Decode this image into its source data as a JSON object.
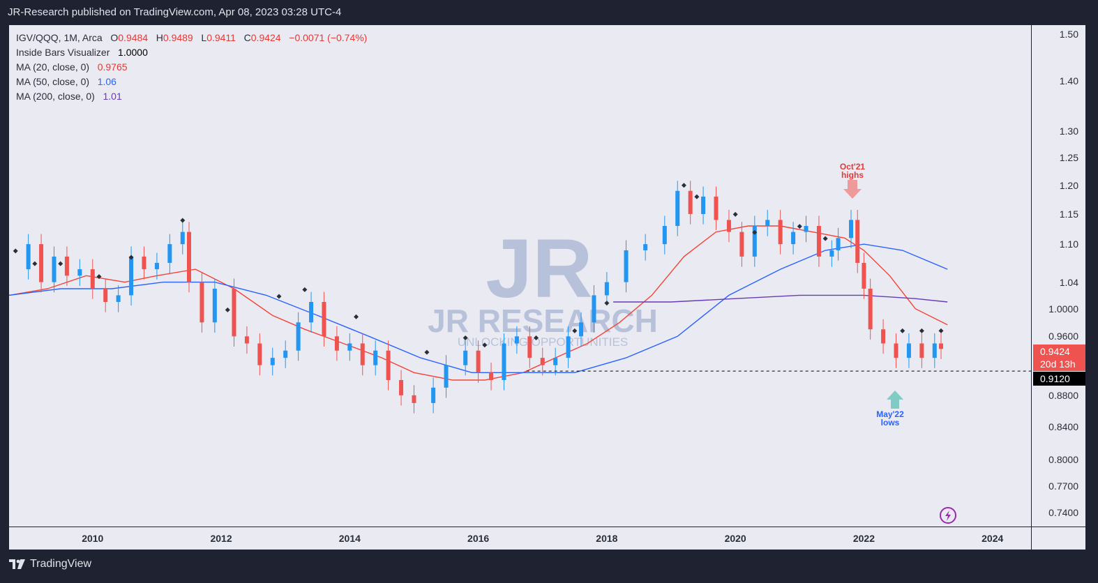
{
  "header": {
    "published": "JR-Research published on TradingView.com, Apr 08, 2023 03:28 UTC-4"
  },
  "legend": {
    "symbol": "IGV/QQQ, 1M, Arca",
    "o_label": "O",
    "o_val": "0.9484",
    "h_label": "H",
    "h_val": "0.9489",
    "l_label": "L",
    "l_val": "0.9411",
    "c_label": "C",
    "c_val": "0.9424",
    "change": "−0.0071 (−0.74%)",
    "inside_bars_label": "Inside Bars Visualizer",
    "inside_bars_val": "1.0000",
    "ma20_label": "MA (20, close, 0)",
    "ma20_val": "0.9765",
    "ma50_label": "MA (50, close, 0)",
    "ma50_val": "1.06",
    "ma200_label": "MA (200, close, 0)",
    "ma200_val": "1.01"
  },
  "price_badge": {
    "price": "0.9424",
    "countdown": "20d 13h"
  },
  "support_badge": "0.9120",
  "watermark": {
    "logo": "JR",
    "name": "JR RESEARCH",
    "tagline": "UNLOCKING OPPORTUNITIES"
  },
  "annotations": {
    "high_line1": "Oct'21",
    "high_line2": "highs",
    "low_line1": "May'22",
    "low_line2": "lows"
  },
  "footer": {
    "brand": "TradingView"
  },
  "colors": {
    "up": "#2196f3",
    "down": "#ef5350",
    "ma20": "#f44336",
    "ma50": "#2962ff",
    "ma200": "#673ab7",
    "high_arrow": "#ef9a9a",
    "low_arrow": "#80cbc4"
  },
  "chart_data": {
    "type": "candlestick",
    "scale": "log",
    "ylim": [
      0.725,
      1.52
    ],
    "xlim": [
      2008.7,
      2024.6
    ],
    "y_ticks": [
      1.5,
      1.4,
      1.3,
      1.25,
      1.2,
      1.15,
      1.1,
      1.04,
      1.0,
      0.96,
      0.88,
      0.84,
      0.8,
      0.77,
      0.74
    ],
    "y_tick_labels": [
      "1.50",
      "1.40",
      "1.30",
      "1.25",
      "1.20",
      "1.15",
      "1.10",
      "1.04",
      "1.0000",
      "0.9600",
      "0.8800",
      "0.8400",
      "0.8000",
      "0.7700",
      "0.7400"
    ],
    "x_ticks": [
      2010,
      2012,
      2014,
      2016,
      2018,
      2020,
      2022,
      2024
    ],
    "x_tick_labels": [
      "2010",
      "2012",
      "2014",
      "2016",
      "2018",
      "2020",
      "2022",
      "2024"
    ],
    "closes": [
      [
        2008.7,
        1.06
      ],
      [
        2009.0,
        1.1
      ],
      [
        2009.2,
        1.04
      ],
      [
        2009.4,
        1.08
      ],
      [
        2009.6,
        1.05
      ],
      [
        2009.8,
        1.06
      ],
      [
        2010.0,
        1.03
      ],
      [
        2010.2,
        1.01
      ],
      [
        2010.4,
        1.02
      ],
      [
        2010.6,
        1.08
      ],
      [
        2010.8,
        1.06
      ],
      [
        2011.0,
        1.07
      ],
      [
        2011.2,
        1.1
      ],
      [
        2011.4,
        1.12
      ],
      [
        2011.5,
        1.04
      ],
      [
        2011.7,
        0.98
      ],
      [
        2011.9,
        1.03
      ],
      [
        2012.2,
        0.96
      ],
      [
        2012.4,
        0.95
      ],
      [
        2012.6,
        0.92
      ],
      [
        2012.8,
        0.93
      ],
      [
        2013.0,
        0.94
      ],
      [
        2013.2,
        0.98
      ],
      [
        2013.4,
        1.01
      ],
      [
        2013.6,
        0.96
      ],
      [
        2013.8,
        0.94
      ],
      [
        2014.0,
        0.95
      ],
      [
        2014.2,
        0.92
      ],
      [
        2014.4,
        0.94
      ],
      [
        2014.6,
        0.9
      ],
      [
        2014.8,
        0.88
      ],
      [
        2015.0,
        0.87
      ],
      [
        2015.3,
        0.89
      ],
      [
        2015.5,
        0.92
      ],
      [
        2015.8,
        0.94
      ],
      [
        2016.0,
        0.91
      ],
      [
        2016.2,
        0.9
      ],
      [
        2016.4,
        0.95
      ],
      [
        2016.6,
        0.96
      ],
      [
        2016.8,
        0.93
      ],
      [
        2017.0,
        0.92
      ],
      [
        2017.2,
        0.93
      ],
      [
        2017.4,
        0.96
      ],
      [
        2017.6,
        0.98
      ],
      [
        2017.8,
        1.02
      ],
      [
        2018.0,
        1.04
      ],
      [
        2018.3,
        1.09
      ],
      [
        2018.6,
        1.1
      ],
      [
        2018.9,
        1.13
      ],
      [
        2019.1,
        1.19
      ],
      [
        2019.3,
        1.15
      ],
      [
        2019.5,
        1.18
      ],
      [
        2019.7,
        1.14
      ],
      [
        2019.9,
        1.12
      ],
      [
        2020.1,
        1.08
      ],
      [
        2020.3,
        1.13
      ],
      [
        2020.5,
        1.14
      ],
      [
        2020.7,
        1.1
      ],
      [
        2020.9,
        1.12
      ],
      [
        2021.1,
        1.13
      ],
      [
        2021.3,
        1.08
      ],
      [
        2021.5,
        1.09
      ],
      [
        2021.6,
        1.11
      ],
      [
        2021.8,
        1.14
      ],
      [
        2021.9,
        1.07
      ],
      [
        2022.0,
        1.03
      ],
      [
        2022.1,
        0.97
      ],
      [
        2022.3,
        0.95
      ],
      [
        2022.5,
        0.93
      ],
      [
        2022.7,
        0.95
      ],
      [
        2022.9,
        0.93
      ],
      [
        2023.1,
        0.95
      ],
      [
        2023.2,
        0.9424
      ]
    ],
    "ma20": [
      [
        2008.7,
        1.02
      ],
      [
        2009.3,
        1.03
      ],
      [
        2009.9,
        1.05
      ],
      [
        2010.5,
        1.04
      ],
      [
        2011.0,
        1.05
      ],
      [
        2011.6,
        1.06
      ],
      [
        2012.2,
        1.03
      ],
      [
        2012.8,
        0.99
      ],
      [
        2013.3,
        0.97
      ],
      [
        2013.9,
        0.95
      ],
      [
        2014.5,
        0.93
      ],
      [
        2015.0,
        0.91
      ],
      [
        2015.6,
        0.9
      ],
      [
        2016.1,
        0.9
      ],
      [
        2016.7,
        0.91
      ],
      [
        2017.2,
        0.93
      ],
      [
        2017.7,
        0.95
      ],
      [
        2018.2,
        0.98
      ],
      [
        2018.7,
        1.02
      ],
      [
        2019.2,
        1.08
      ],
      [
        2019.7,
        1.12
      ],
      [
        2020.2,
        1.13
      ],
      [
        2020.7,
        1.13
      ],
      [
        2021.2,
        1.12
      ],
      [
        2021.7,
        1.11
      ],
      [
        2022.0,
        1.09
      ],
      [
        2022.4,
        1.05
      ],
      [
        2022.8,
        1.0
      ],
      [
        2023.3,
        0.9765
      ]
    ],
    "ma50": [
      [
        2008.7,
        1.02
      ],
      [
        2009.5,
        1.03
      ],
      [
        2010.3,
        1.03
      ],
      [
        2011.1,
        1.04
      ],
      [
        2011.9,
        1.04
      ],
      [
        2012.7,
        1.02
      ],
      [
        2013.5,
        0.99
      ],
      [
        2014.3,
        0.96
      ],
      [
        2015.1,
        0.93
      ],
      [
        2015.9,
        0.91
      ],
      [
        2016.7,
        0.91
      ],
      [
        2017.5,
        0.91
      ],
      [
        2018.3,
        0.93
      ],
      [
        2019.1,
        0.96
      ],
      [
        2019.9,
        1.02
      ],
      [
        2020.7,
        1.06
      ],
      [
        2021.4,
        1.09
      ],
      [
        2022.0,
        1.1
      ],
      [
        2022.6,
        1.09
      ],
      [
        2023.3,
        1.06
      ]
    ],
    "ma200": [
      [
        2018.1,
        1.01
      ],
      [
        2019.0,
        1.01
      ],
      [
        2020.0,
        1.015
      ],
      [
        2021.0,
        1.02
      ],
      [
        2022.0,
        1.02
      ],
      [
        2022.8,
        1.015
      ],
      [
        2023.3,
        1.01
      ]
    ],
    "support": 0.912,
    "support_x": [
      2016.75,
      2024.6
    ],
    "inside_bar_markers": [
      [
        2008.8,
        1.08
      ],
      [
        2009.1,
        1.06
      ],
      [
        2009.5,
        1.06
      ],
      [
        2010.1,
        1.04
      ],
      [
        2010.6,
        1.07
      ],
      [
        2011.4,
        1.13
      ],
      [
        2012.1,
        0.99
      ],
      [
        2012.9,
        1.01
      ],
      [
        2013.3,
        1.02
      ],
      [
        2014.1,
        0.98
      ],
      [
        2015.2,
        0.93
      ],
      [
        2015.8,
        0.95
      ],
      [
        2016.1,
        0.94
      ],
      [
        2016.9,
        0.95
      ],
      [
        2017.5,
        0.96
      ],
      [
        2018.0,
        1.0
      ],
      [
        2019.2,
        1.19
      ],
      [
        2019.4,
        1.17
      ],
      [
        2020.0,
        1.14
      ],
      [
        2020.3,
        1.11
      ],
      [
        2021.0,
        1.12
      ],
      [
        2021.4,
        1.1
      ],
      [
        2022.6,
        0.96
      ],
      [
        2022.9,
        0.96
      ],
      [
        2023.2,
        0.96
      ]
    ]
  }
}
